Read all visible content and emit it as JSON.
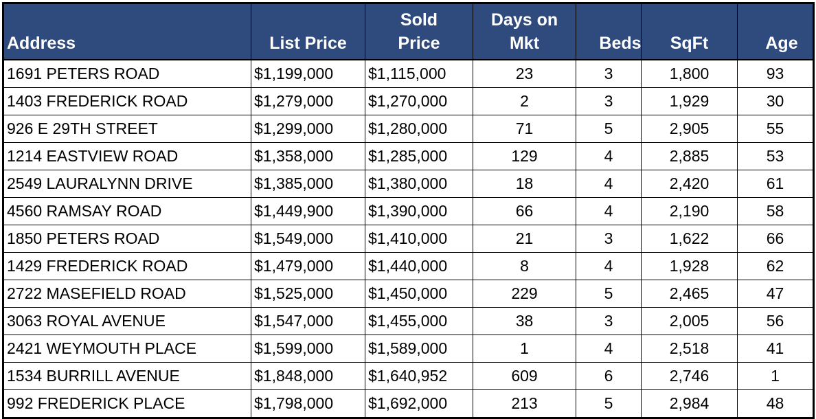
{
  "table": {
    "headers": [
      "Address",
      "List Price",
      "Sold Price",
      "Days on Mkt",
      "Beds",
      "SqFt",
      "Age"
    ],
    "rows": [
      [
        "1691 PETERS ROAD",
        "$1,199,000",
        "$1,115,000",
        23,
        3,
        "1,800",
        93
      ],
      [
        "1403 FREDERICK ROAD",
        "$1,279,000",
        "$1,270,000",
        2,
        3,
        "1,929",
        30
      ],
      [
        "926 E 29TH STREET",
        "$1,299,000",
        "$1,280,000",
        71,
        5,
        "2,905",
        55
      ],
      [
        "1214 EASTVIEW ROAD",
        "$1,358,000",
        "$1,285,000",
        129,
        4,
        "2,885",
        53
      ],
      [
        "2549 LAURALYNN DRIVE",
        "$1,385,000",
        "$1,380,000",
        18,
        4,
        "2,420",
        61
      ],
      [
        "4560 RAMSAY ROAD",
        "$1,449,900",
        "$1,390,000",
        66,
        4,
        "2,190",
        58
      ],
      [
        "1850 PETERS ROAD",
        "$1,549,000",
        "$1,410,000",
        21,
        3,
        "1,622",
        66
      ],
      [
        "1429 FREDERICK ROAD",
        "$1,479,000",
        "$1,440,000",
        8,
        4,
        "1,928",
        62
      ],
      [
        "2722 MASEFIELD ROAD",
        "$1,525,000",
        "$1,450,000",
        229,
        5,
        "2,465",
        47
      ],
      [
        "3063 ROYAL AVENUE",
        "$1,547,000",
        "$1,455,000",
        38,
        3,
        "2,005",
        56
      ],
      [
        "2421 WEYMOUTH PLACE",
        "$1,599,000",
        "$1,589,000",
        1,
        4,
        "2,518",
        41
      ],
      [
        "1534 BURRILL AVENUE",
        "$1,848,000",
        "$1,640,952",
        609,
        6,
        "2,746",
        1
      ],
      [
        "992 FREDERICK PLACE",
        "$1,798,000",
        "$1,692,000",
        213,
        5,
        "2,984",
        48
      ]
    ]
  }
}
